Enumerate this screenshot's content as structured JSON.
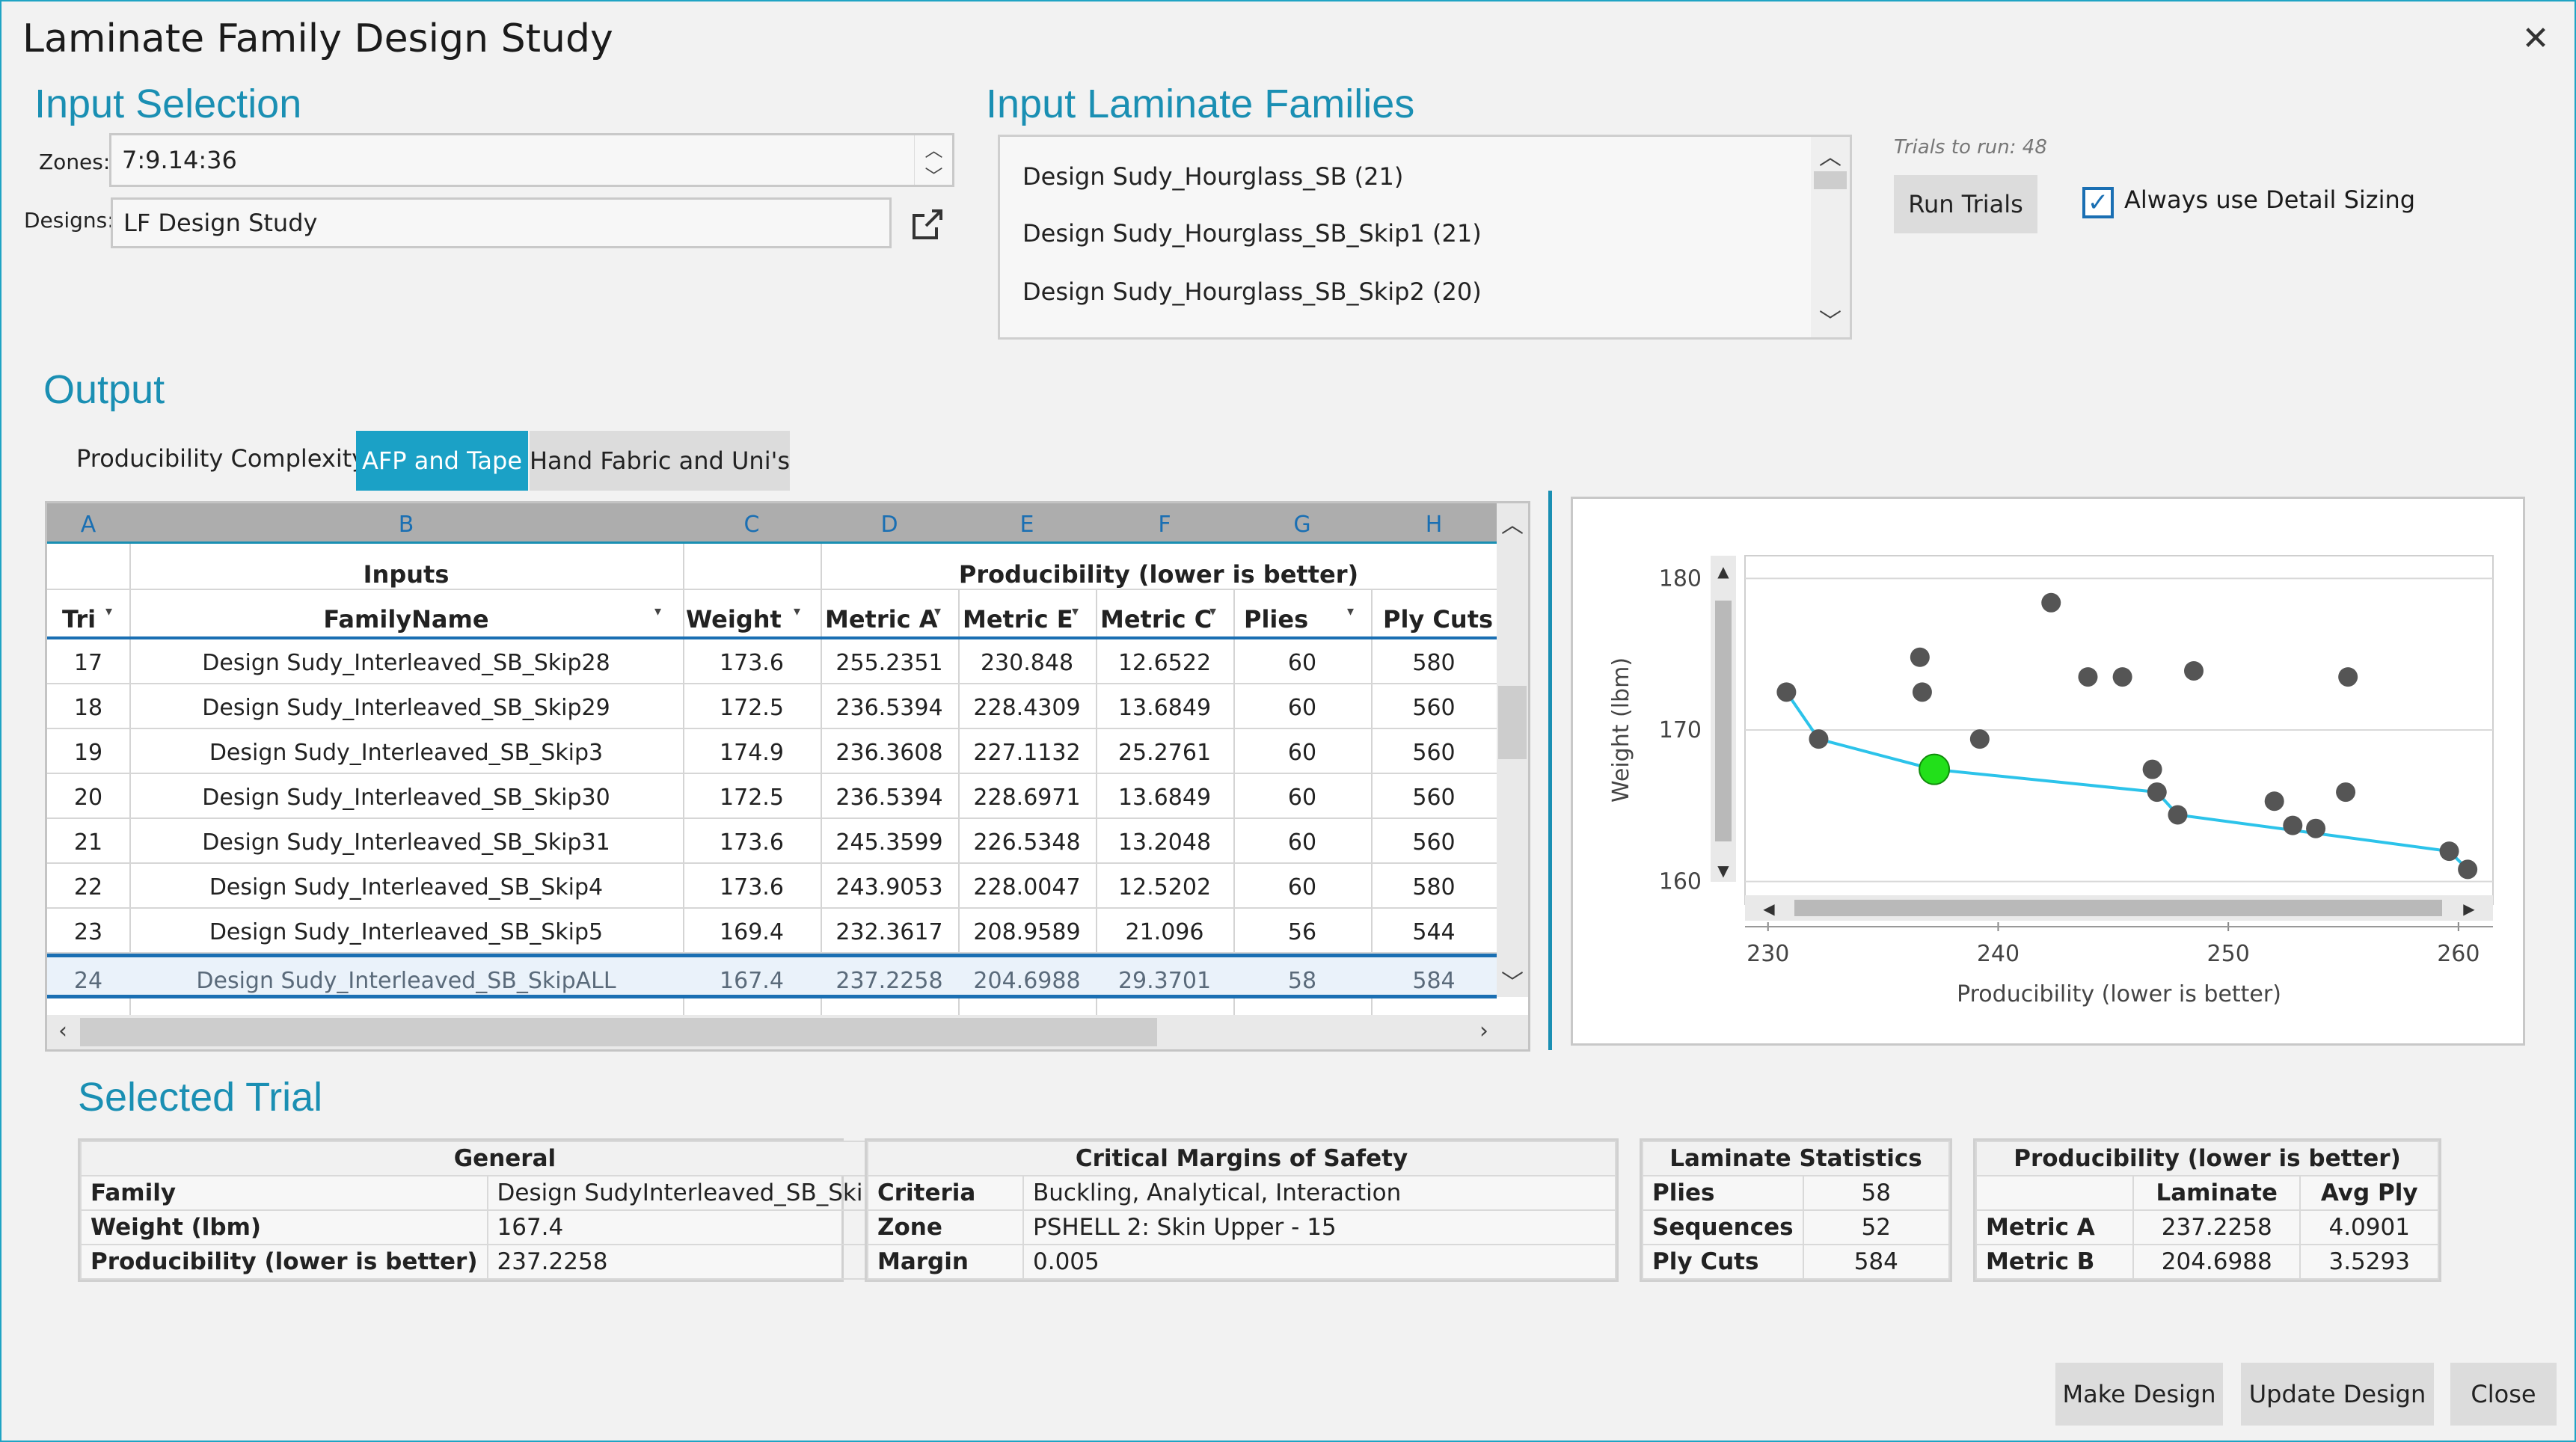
{
  "window": {
    "title": "Laminate Family Design Study",
    "close_glyph": "✕"
  },
  "input_selection": {
    "heading": "Input Selection",
    "zones_label": "Zones:",
    "zones_value": "7:9.14:36",
    "designs_label": "Designs:",
    "designs_value": "LF Design Study"
  },
  "input_families": {
    "heading": "Input Laminate Families",
    "items": [
      "Design Sudy_Hourglass_SB (21)",
      "Design Sudy_Hourglass_SB_Skip1 (21)",
      "Design Sudy_Hourglass_SB_Skip2 (20)"
    ],
    "trials_label": "Trials to run:",
    "trials_value": "48",
    "run_button": "Run Trials",
    "detail_sizing_label": "Always use Detail Sizing",
    "detail_sizing_checked": true
  },
  "output": {
    "heading": "Output",
    "complexity_label": "Producibility Complexity:",
    "tabs": [
      {
        "label": "AFP and Tape",
        "active": true
      },
      {
        "label": "Hand Fabric and Uni's",
        "active": false
      }
    ]
  },
  "grid": {
    "column_letters": [
      "A",
      "B",
      "C",
      "D",
      "E",
      "F",
      "G",
      "H"
    ],
    "group_headers": {
      "inputs": "Inputs",
      "producibility": "Producibility (lower is better)"
    },
    "headers": [
      "Tri",
      "FamilyName",
      "Weight",
      "Metric A",
      "Metric E",
      "Metric C",
      "Plies",
      "Ply Cuts"
    ],
    "rows": [
      {
        "tri": "17",
        "name": "Design Sudy_Interleaved_SB_Skip28",
        "weight": "173.6",
        "a": "255.2351",
        "e": "230.848",
        "c": "12.6522",
        "plies": "60",
        "cuts": "580",
        "selected": false
      },
      {
        "tri": "18",
        "name": "Design Sudy_Interleaved_SB_Skip29",
        "weight": "172.5",
        "a": "236.5394",
        "e": "228.4309",
        "c": "13.6849",
        "plies": "60",
        "cuts": "560",
        "selected": false
      },
      {
        "tri": "19",
        "name": "Design Sudy_Interleaved_SB_Skip3",
        "weight": "174.9",
        "a": "236.3608",
        "e": "227.1132",
        "c": "25.2761",
        "plies": "60",
        "cuts": "560",
        "selected": false
      },
      {
        "tri": "20",
        "name": "Design Sudy_Interleaved_SB_Skip30",
        "weight": "172.5",
        "a": "236.5394",
        "e": "228.6971",
        "c": "13.6849",
        "plies": "60",
        "cuts": "560",
        "selected": false
      },
      {
        "tri": "21",
        "name": "Design Sudy_Interleaved_SB_Skip31",
        "weight": "173.6",
        "a": "245.3599",
        "e": "226.5348",
        "c": "13.2048",
        "plies": "60",
        "cuts": "560",
        "selected": false
      },
      {
        "tri": "22",
        "name": "Design Sudy_Interleaved_SB_Skip4",
        "weight": "173.6",
        "a": "243.9053",
        "e": "228.0047",
        "c": "12.5202",
        "plies": "60",
        "cuts": "580",
        "selected": false
      },
      {
        "tri": "23",
        "name": "Design Sudy_Interleaved_SB_Skip5",
        "weight": "169.4",
        "a": "232.3617",
        "e": "208.9589",
        "c": "21.096",
        "plies": "56",
        "cuts": "544",
        "selected": false
      },
      {
        "tri": "24",
        "name": "Design Sudy_Interleaved_SB_SkipALL",
        "weight": "167.4",
        "a": "237.2258",
        "e": "204.6988",
        "c": "29.3701",
        "plies": "58",
        "cuts": "584",
        "selected": true
      }
    ]
  },
  "chart_data": {
    "type": "scatter",
    "xlabel": "Producibility (lower is better)",
    "ylabel": "Weight (lbm)",
    "xlim": [
      229,
      261.5
    ],
    "ylim": [
      158.5,
      181.5
    ],
    "xticks": [
      "230",
      "240",
      "250",
      "260"
    ],
    "yticks": [
      "160",
      "170",
      "180"
    ],
    "points": [
      [
        242.3,
        178.4
      ],
      [
        236.6,
        174.8
      ],
      [
        236.7,
        172.5
      ],
      [
        243.9,
        173.5
      ],
      [
        245.4,
        173.5
      ],
      [
        248.5,
        173.9
      ],
      [
        255.2,
        173.5
      ],
      [
        239.2,
        169.4
      ],
      [
        246.7,
        167.4
      ],
      [
        252.0,
        165.3
      ],
      [
        255.1,
        165.9
      ],
      [
        252.8,
        163.7
      ],
      [
        253.8,
        163.5
      ]
    ],
    "pareto": [
      [
        230.8,
        172.5
      ],
      [
        232.2,
        169.4
      ],
      [
        237.2,
        167.4
      ],
      [
        246.9,
        165.9
      ],
      [
        247.8,
        164.4
      ],
      [
        259.6,
        162.0
      ],
      [
        260.4,
        160.8
      ]
    ],
    "highlight": [
      237.2258,
      167.4
    ],
    "colors": {
      "point": "#555555",
      "pareto": "#2cc3ea",
      "highlight": "#22e01a"
    }
  },
  "selected_trial": {
    "heading": "Selected Trial",
    "general": {
      "title": "General",
      "rows": [
        [
          "Family",
          "Design SudyInterleaved_SB_SkipALL"
        ],
        [
          "Weight (lbm)",
          "167.4"
        ],
        [
          "Producibility (lower is better)",
          "237.2258"
        ]
      ]
    },
    "margins": {
      "title": "Critical Margins of Safety",
      "rows": [
        [
          "Criteria",
          "Buckling, Analytical, Interaction"
        ],
        [
          "Zone",
          "PSHELL 2: Skin Upper - 15"
        ],
        [
          "Margin",
          "0.005"
        ]
      ]
    },
    "laminate": {
      "title": "Laminate Statistics",
      "rows": [
        [
          "Plies",
          "58"
        ],
        [
          "Sequences",
          "52"
        ],
        [
          "Ply Cuts",
          "584"
        ]
      ]
    },
    "producibility": {
      "title": "Producibility (lower is better)",
      "col1": "Laminate",
      "col2": "Avg Ply",
      "rows": [
        [
          "Metric A",
          "237.2258",
          "4.0901"
        ],
        [
          "Metric B",
          "204.6988",
          "3.5293"
        ]
      ]
    }
  },
  "footer": {
    "make": "Make Design",
    "update": "Update Design",
    "close": "Close"
  }
}
